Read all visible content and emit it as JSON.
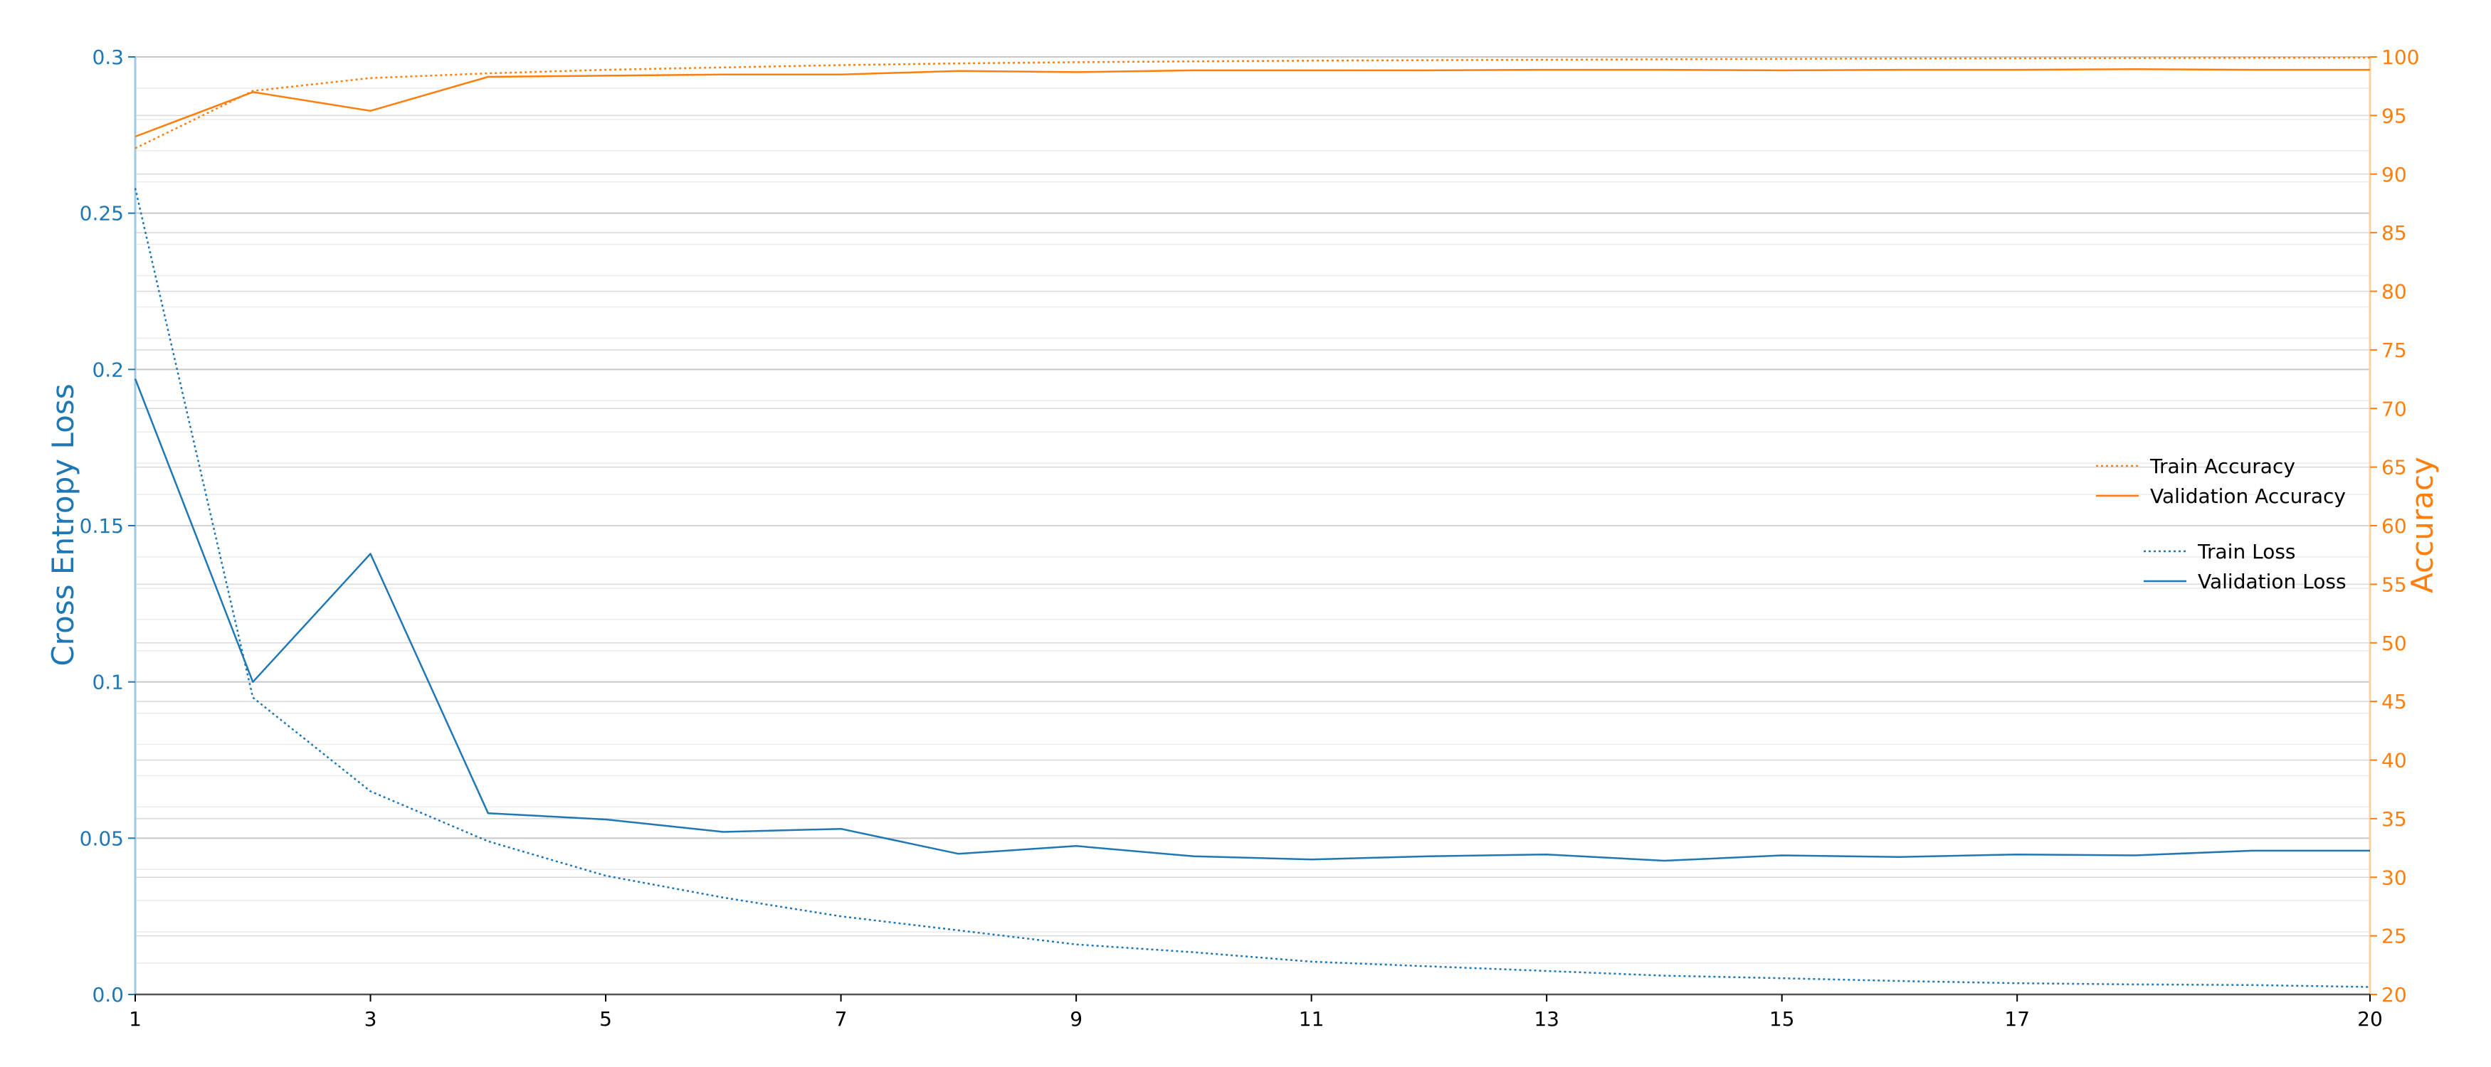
{
  "chart_data": {
    "type": "line",
    "x": [
      1,
      2,
      3,
      4,
      5,
      6,
      7,
      8,
      9,
      10,
      11,
      12,
      13,
      14,
      15,
      16,
      17,
      18,
      19,
      20
    ],
    "x_ticks": [
      1,
      3,
      5,
      7,
      9,
      11,
      13,
      15,
      17,
      20
    ],
    "xlim": [
      1,
      20
    ],
    "grid": true,
    "y_left": {
      "label": "Cross Entropy Loss",
      "lim": [
        0,
        0.3
      ],
      "ticks": [
        0.0,
        0.05,
        0.1,
        0.15,
        0.2,
        0.25,
        0.3
      ],
      "tick_labels": [
        "0.0",
        "0.05",
        "0.1",
        "0.15",
        "0.2",
        "0.25",
        "0.3"
      ]
    },
    "y_right": {
      "label": "Accuracy",
      "lim": [
        20,
        100
      ],
      "ticks": [
        20,
        25,
        30,
        35,
        40,
        45,
        50,
        55,
        60,
        65,
        70,
        75,
        80,
        85,
        90,
        95,
        100
      ]
    },
    "colors": {
      "loss": "#1f77b4",
      "accuracy": "#ff7f0e"
    },
    "series": [
      {
        "name": "Train Accuracy",
        "axis": "right",
        "style": "dotted",
        "color": "#ff7f0e",
        "values": [
          92.2,
          97.1,
          98.2,
          98.6,
          98.9,
          99.1,
          99.3,
          99.45,
          99.55,
          99.62,
          99.68,
          99.72,
          99.76,
          99.8,
          99.83,
          99.86,
          99.88,
          99.9,
          99.92,
          99.94
        ]
      },
      {
        "name": "Validation Accuracy",
        "axis": "right",
        "style": "solid",
        "color": "#ff7f0e",
        "values": [
          93.2,
          97.0,
          95.4,
          98.3,
          98.4,
          98.5,
          98.5,
          98.8,
          98.7,
          98.85,
          98.85,
          98.85,
          98.9,
          98.9,
          98.85,
          98.9,
          98.9,
          98.95,
          98.9,
          98.9
        ]
      },
      {
        "name": "Train Loss",
        "axis": "left",
        "style": "dotted",
        "color": "#1f77b4",
        "values": [
          0.258,
          0.095,
          0.065,
          0.049,
          0.038,
          0.031,
          0.025,
          0.0205,
          0.016,
          0.0135,
          0.0105,
          0.009,
          0.0075,
          0.006,
          0.0052,
          0.0043,
          0.0036,
          0.0032,
          0.003,
          0.0024
        ]
      },
      {
        "name": "Validation Loss",
        "axis": "left",
        "style": "solid",
        "color": "#1f77b4",
        "values": [
          0.197,
          0.1,
          0.141,
          0.058,
          0.056,
          0.052,
          0.053,
          0.045,
          0.0475,
          0.0442,
          0.0432,
          0.0442,
          0.0448,
          0.0428,
          0.0445,
          0.044,
          0.0448,
          0.0445,
          0.046,
          0.046
        ]
      }
    ],
    "legend": {
      "placement": "center-right",
      "groups": [
        [
          "Train Accuracy",
          "Validation Accuracy"
        ],
        [
          "Train Loss",
          "Validation Loss"
        ]
      ]
    }
  }
}
